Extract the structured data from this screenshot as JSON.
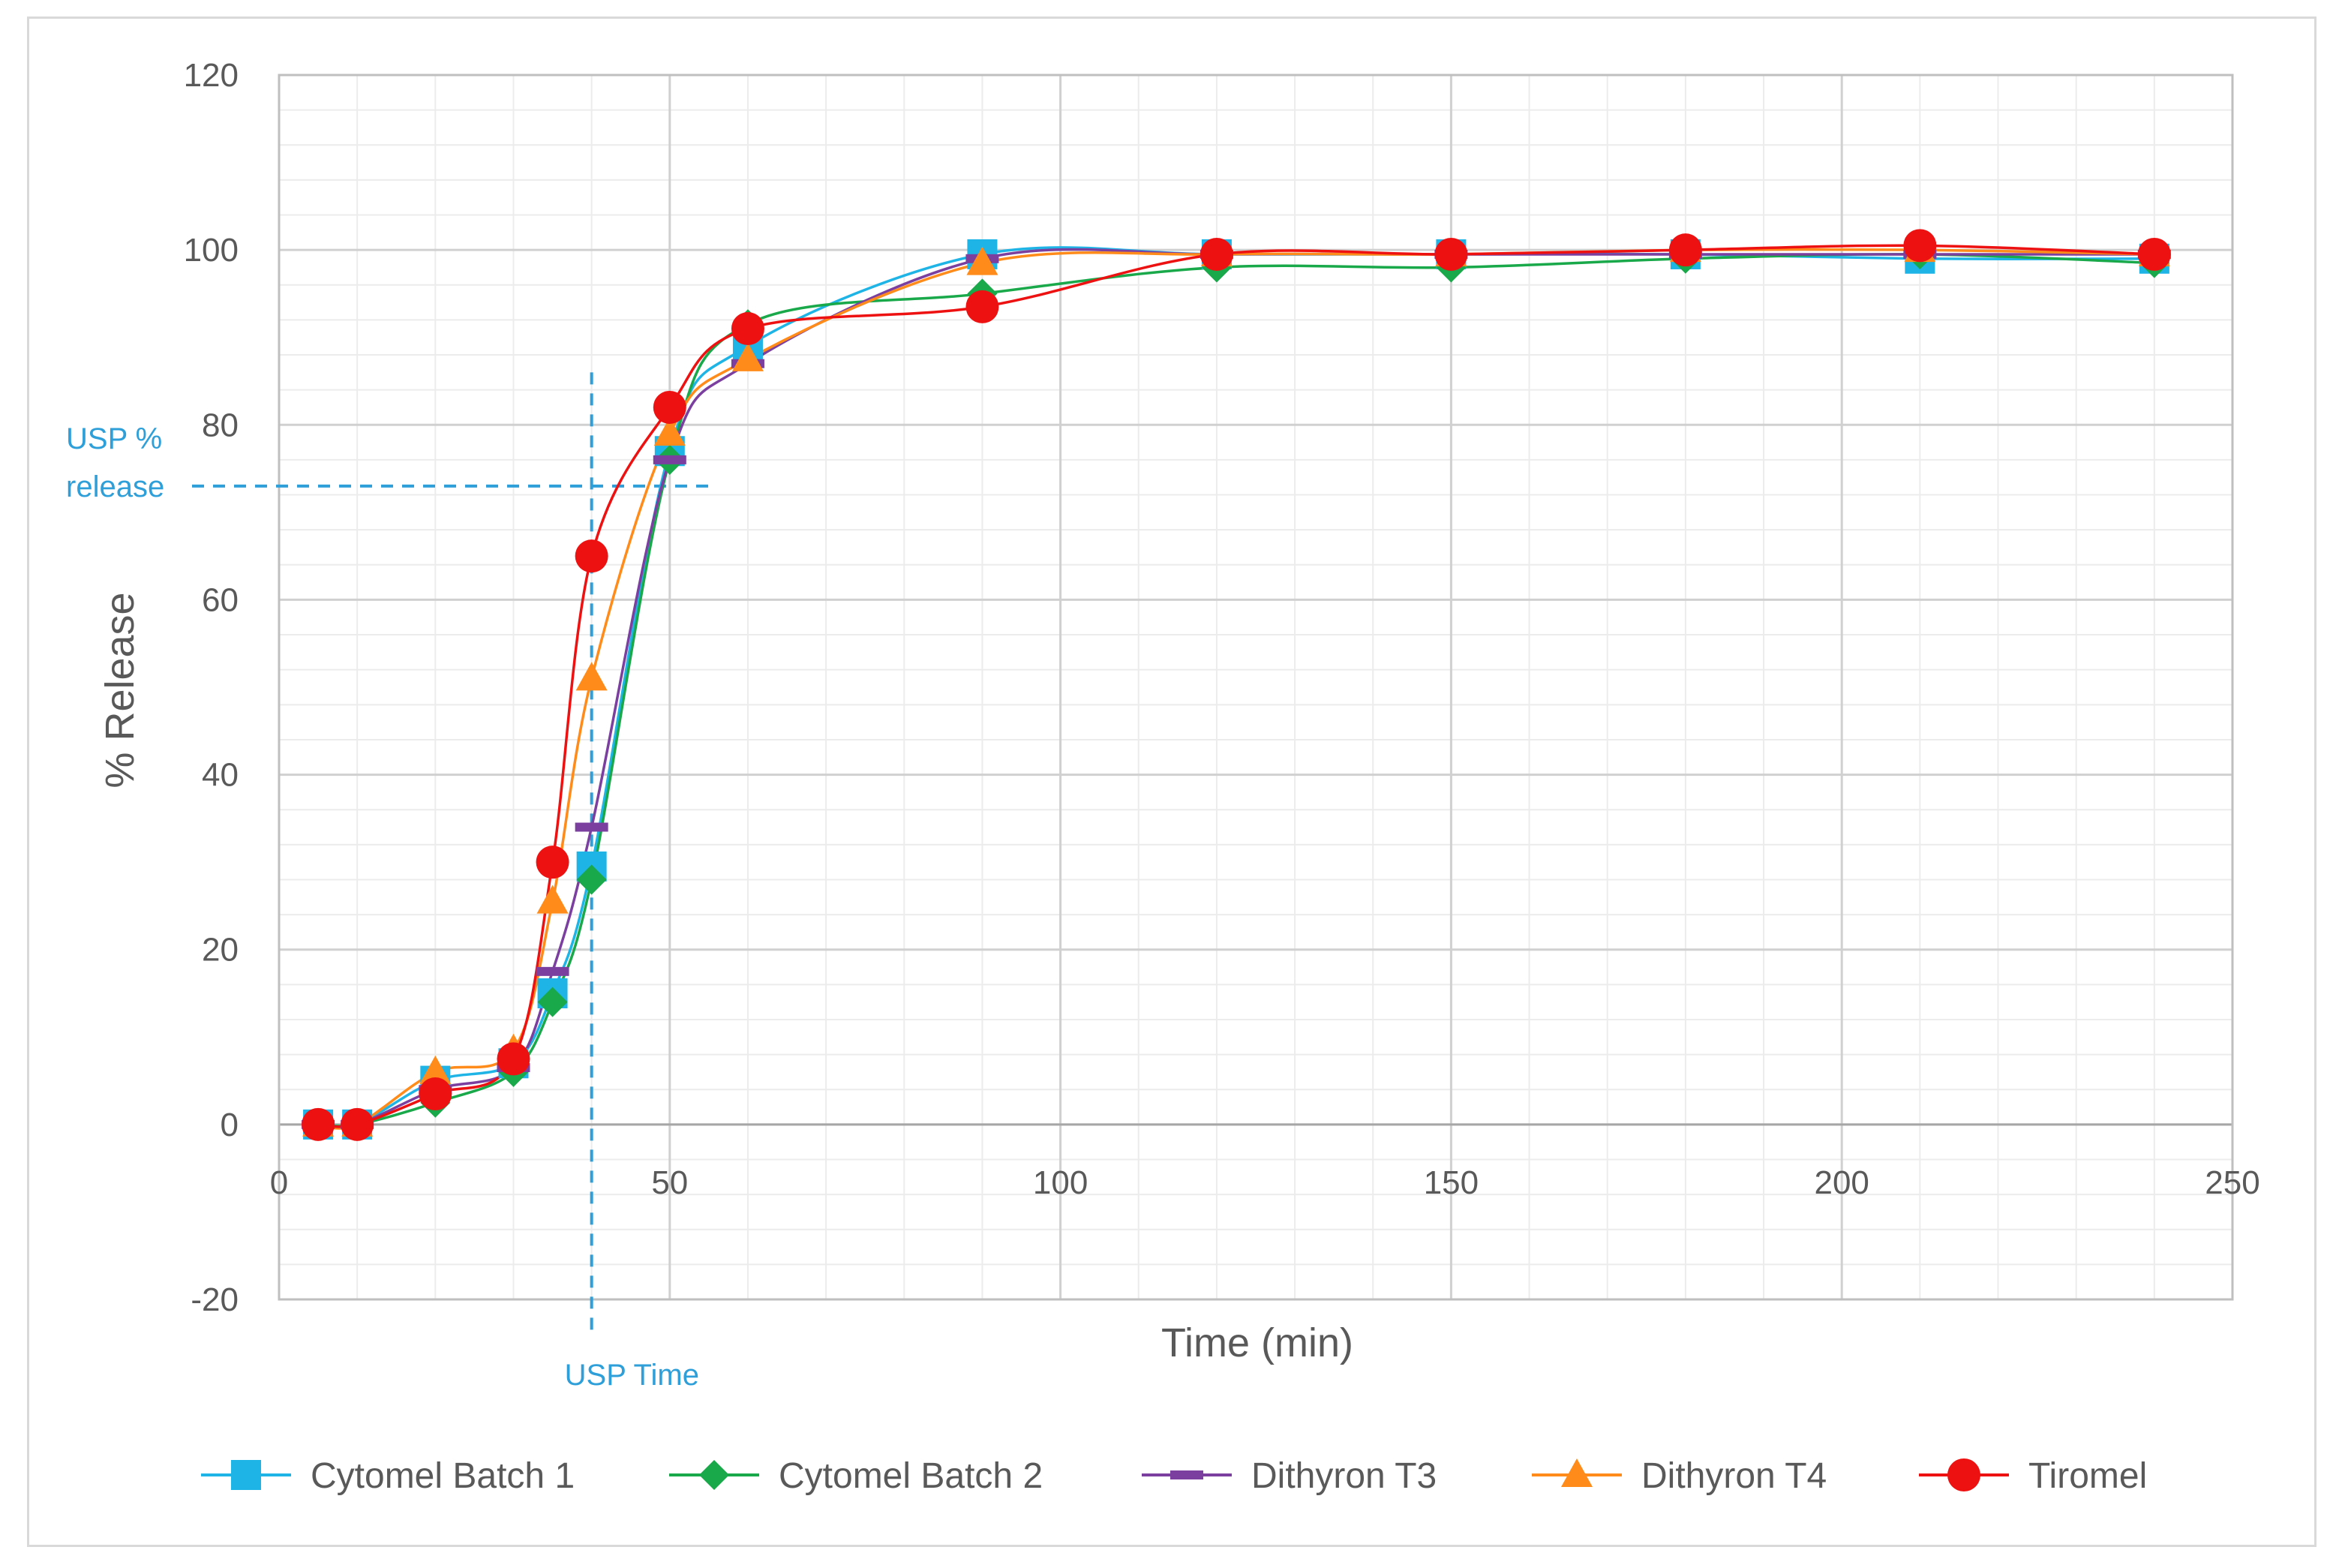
{
  "chart_data": {
    "type": "line",
    "title": "",
    "xlabel": "Time (min)",
    "ylabel": "% Release",
    "xlim": [
      0,
      250
    ],
    "ylim": [
      -20,
      120
    ],
    "x_ticks": [
      0,
      50,
      100,
      150,
      200,
      250
    ],
    "y_ticks": [
      -20,
      0,
      20,
      40,
      60,
      80,
      100,
      120
    ],
    "x_tick_labels": [
      "0",
      "50",
      "100",
      "150",
      "200",
      "250"
    ],
    "y_tick_labels": [
      "-20",
      "0",
      "20",
      "40",
      "60",
      "80",
      "100",
      "120"
    ],
    "grid": true,
    "legend_position": "bottom",
    "x": [
      5,
      10,
      20,
      30,
      35,
      40,
      50,
      60,
      90,
      120,
      150,
      180,
      210,
      240
    ],
    "series": [
      {
        "name": "Cytomel Batch 1",
        "color": "#1fb4e6",
        "marker": "square",
        "values": [
          0,
          0,
          5,
          7,
          15,
          29.5,
          77,
          89,
          99.5,
          99.5,
          99.5,
          99.5,
          99,
          99
        ]
      },
      {
        "name": "Cytomel Batch 2",
        "color": "#19a84a",
        "marker": "diamond",
        "values": [
          0,
          0,
          2.5,
          6,
          14,
          28,
          76,
          91.5,
          95,
          98,
          98,
          99,
          99.5,
          98.5
        ]
      },
      {
        "name": "Dithyron T3",
        "color": "#7b3fa0",
        "marker": "dash",
        "values": [
          0,
          0,
          4,
          6.5,
          17.5,
          34,
          76,
          87,
          99,
          99.5,
          99.5,
          99.5,
          99.5,
          99.5
        ]
      },
      {
        "name": "Dithyron T4",
        "color": "#ff8c1a",
        "marker": "triangle",
        "values": [
          0,
          0,
          6,
          8.5,
          25.5,
          51,
          79,
          87.5,
          98.5,
          99.5,
          99.5,
          100,
          100,
          99.5
        ]
      },
      {
        "name": "Tiromel",
        "color": "#ee1111",
        "marker": "circle",
        "values": [
          0,
          0,
          3.5,
          7.5,
          30,
          65,
          82,
          91,
          93.5,
          99.5,
          99.5,
          100,
          100.5,
          99.5
        ]
      }
    ],
    "annotations": [
      {
        "text_lines": [
          "USP %",
          "release"
        ],
        "type": "horizontal-dashed",
        "y": 73,
        "x_end": 55,
        "color": "#2e9fd8"
      },
      {
        "text_lines": [
          "USP Time"
        ],
        "type": "vertical-dashed",
        "x": 40,
        "y_top": 86,
        "color": "#2e9fd8"
      }
    ],
    "colors": {
      "major_grid": "#d0d0d0",
      "minor_grid": "#ececec",
      "axis_text": "#595959",
      "frame": "#d9d9d9"
    }
  }
}
